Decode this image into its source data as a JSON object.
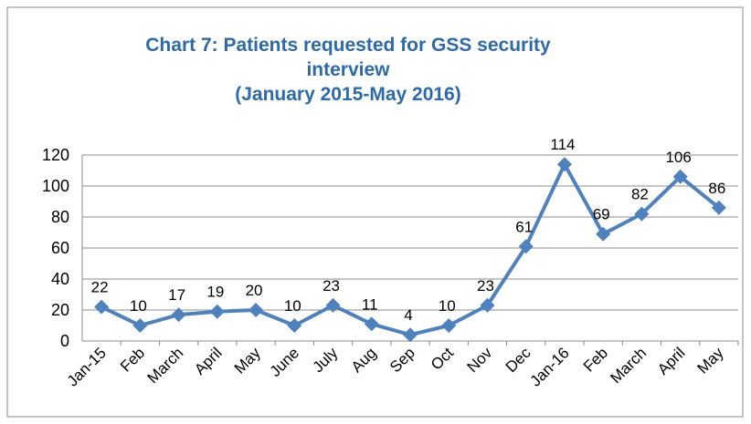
{
  "chart_data": {
    "type": "line",
    "title": [
      "Chart 7: Patients requested for GSS security",
      "interview",
      "(January 2015-May 2016)"
    ],
    "categories": [
      "Jan-15",
      "Feb",
      "March",
      "April",
      "May",
      "June",
      "July",
      "Aug",
      "Sep",
      "Oct",
      "Nov",
      "Dec",
      "Jan-16",
      "Feb",
      "March",
      "April",
      "May"
    ],
    "values": [
      22,
      10,
      17,
      19,
      20,
      10,
      23,
      11,
      4,
      10,
      23,
      61,
      114,
      69,
      82,
      106,
      86
    ],
    "color": "#4f81bd",
    "ylim": [
      0,
      120
    ],
    "yticks": [
      0,
      20,
      40,
      60,
      80,
      100,
      120
    ],
    "grid": true
  }
}
